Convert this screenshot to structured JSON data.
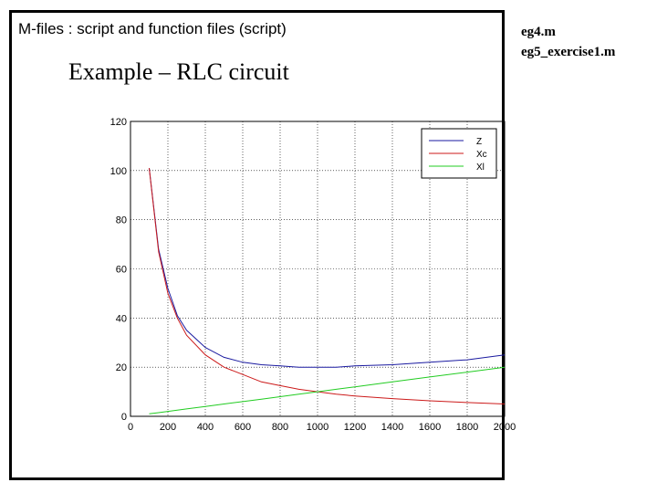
{
  "slide": {
    "heading": "M-files : script and function files (script)",
    "subtitle": "Example – RLC circuit",
    "links": [
      "eg4.m",
      "eg5_exercise1.m"
    ]
  },
  "colors": {
    "Z": "#1a1aa0",
    "Xc": "#cc1a1a",
    "Xl": "#22cc22",
    "grid": "#000000"
  },
  "chart_data": {
    "type": "line",
    "title": "",
    "xlabel": "",
    "ylabel": "",
    "xlim": [
      0,
      2000
    ],
    "ylim": [
      0,
      120
    ],
    "x_ticks": [
      0,
      200,
      400,
      600,
      800,
      1000,
      1200,
      1400,
      1600,
      1800,
      2000
    ],
    "y_ticks": [
      0,
      20,
      40,
      60,
      80,
      100,
      120
    ],
    "x_tick_labels": [
      "0",
      "200",
      "400",
      "600",
      "800",
      "1000",
      "1200",
      "1400",
      "1600",
      "1800",
      "2000"
    ],
    "y_tick_labels": [
      "0",
      "20",
      "40",
      "60",
      "80",
      "100",
      "120"
    ],
    "grid": true,
    "legend": "top-right",
    "x": [
      100,
      150,
      200,
      250,
      300,
      400,
      500,
      600,
      700,
      800,
      900,
      1000,
      1100,
      1200,
      1400,
      1600,
      1800,
      2000
    ],
    "series": [
      {
        "name": "Z",
        "values": [
          101,
          68,
          52,
          41,
          35,
          28,
          24,
          22,
          21,
          20.5,
          20,
          20,
          20,
          20.5,
          21,
          22,
          23,
          25
        ]
      },
      {
        "name": "Xc",
        "values": [
          101,
          67,
          50,
          40,
          33,
          25,
          20,
          17,
          14,
          12.5,
          11,
          10,
          9,
          8.3,
          7.2,
          6.3,
          5.6,
          5
        ]
      },
      {
        "name": "Xl",
        "values": [
          1,
          1.5,
          2,
          2.5,
          3,
          4,
          5,
          6,
          7,
          8,
          9,
          10,
          11,
          12,
          14,
          16,
          18,
          20
        ]
      }
    ]
  }
}
